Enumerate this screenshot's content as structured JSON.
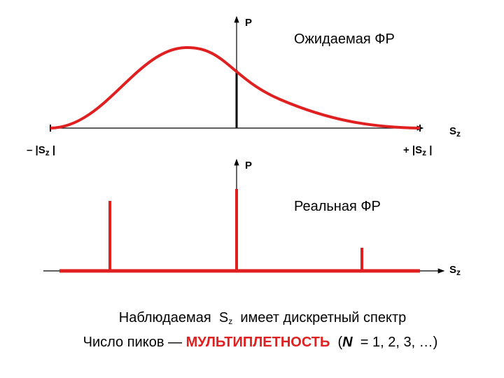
{
  "top": {
    "axis_label": "P",
    "title": "Ожидаемая ФР",
    "x_axis": {
      "main": "S",
      "sub": "z"
    },
    "left_label": {
      "prefix": "– |S",
      "sub": "z",
      "suffix": " |"
    },
    "right_label": {
      "prefix": "+ |S",
      "sub": "z",
      "suffix": " |"
    }
  },
  "bottom": {
    "axis_label": "P",
    "title": "Реальная ФР",
    "x_axis": {
      "main": "S",
      "sub": "z"
    }
  },
  "caption": {
    "line1": {
      "before": "Наблюдаемая  ",
      "main": "S",
      "sub": "z",
      "after": "  имеет дискретный спектр"
    },
    "line2": {
      "before": "Число пиков — ",
      "highlight": "МУЛЬТИПЛЕТНОСТЬ",
      "open": "  (",
      "n": "N",
      "after": "  = 1, 2, 3, …)"
    }
  }
}
